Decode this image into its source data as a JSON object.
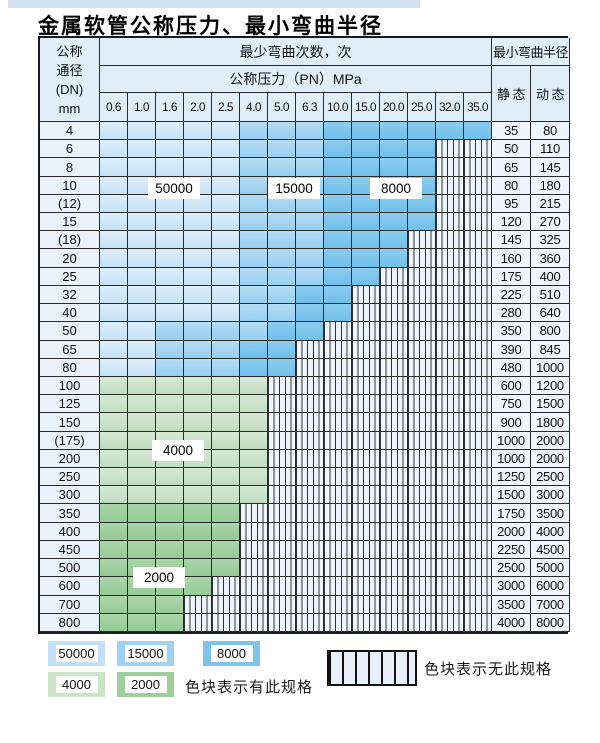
{
  "title": "金属软管公称压力、最小弯曲半径",
  "colors": {
    "blue_light": "#cfe7f8",
    "blue_mid": "#a6d6f2",
    "blue_dark": "#7cc4ec",
    "green_light": "#cde5cb",
    "green_mid": "#9ed09d",
    "hatch_bg": "#edf4fb",
    "header_bg": "#e0eefa",
    "label_col_bg": "#e9f2fb",
    "value_col_bg": "#eef5fc"
  },
  "table": {
    "dn_header_lines": [
      "公称",
      "通径",
      "(DN)",
      "mm"
    ],
    "cycles_header": "最少弯曲次数，次",
    "pressure_header": "公称压力（PN）MPa",
    "radius_header": "最小弯曲半径",
    "static_header": "静 态",
    "dynamic_header": "动 态",
    "pressure_columns": [
      "0.6",
      "1.0",
      "1.6",
      "2.0",
      "2.5",
      "4.0",
      "5.0",
      "6.3",
      "10.0",
      "15.0",
      "20.0",
      "25.0",
      "32.0",
      "35.0"
    ],
    "rows": [
      {
        "dn": "4",
        "zones": {
          "B1": 5,
          "B2": 3,
          "B3": 6
        },
        "static": "35",
        "dynamic": "80"
      },
      {
        "dn": "6",
        "zones": {
          "B1": 5,
          "B2": 3,
          "B3": 4
        },
        "static": "50",
        "dynamic": "110"
      },
      {
        "dn": "8",
        "zones": {
          "B1": 5,
          "B2": 3,
          "B3": 4
        },
        "static": "65",
        "dynamic": "145"
      },
      {
        "dn": "10",
        "zones": {
          "B1": 5,
          "B2": 3,
          "B3": 4
        },
        "static": "80",
        "dynamic": "180"
      },
      {
        "dn": "(12)",
        "zones": {
          "B1": 5,
          "B2": 3,
          "B3": 4
        },
        "static": "95",
        "dynamic": "215"
      },
      {
        "dn": "15",
        "zones": {
          "B1": 5,
          "B2": 3,
          "B3": 4
        },
        "static": "120",
        "dynamic": "270"
      },
      {
        "dn": "(18)",
        "zones": {
          "B1": 5,
          "B2": 3,
          "B3": 3
        },
        "static": "145",
        "dynamic": "325"
      },
      {
        "dn": "20",
        "zones": {
          "B1": 5,
          "B2": 3,
          "B3": 3
        },
        "static": "160",
        "dynamic": "360"
      },
      {
        "dn": "25",
        "zones": {
          "B1": 5,
          "B2": 3,
          "B3": 2
        },
        "static": "175",
        "dynamic": "400"
      },
      {
        "dn": "32",
        "zones": {
          "B1": 5,
          "B2": 2,
          "B3": 2
        },
        "static": "225",
        "dynamic": "510"
      },
      {
        "dn": "40",
        "zones": {
          "B1": 5,
          "B2": 2,
          "B3": 2
        },
        "static": "280",
        "dynamic": "640"
      },
      {
        "dn": "50",
        "zones": {
          "B1": 2,
          "B2": 4,
          "B3": 2
        },
        "static": "350",
        "dynamic": "800"
      },
      {
        "dn": "65",
        "zones": {
          "B1": 2,
          "B2": 3,
          "B3": 2
        },
        "static": "390",
        "dynamic": "845"
      },
      {
        "dn": "80",
        "zones": {
          "B1": 2,
          "B2": 3,
          "B3": 2
        },
        "static": "480",
        "dynamic": "1000"
      },
      {
        "dn": "100",
        "zones": {
          "G1": 6
        },
        "static": "600",
        "dynamic": "1200"
      },
      {
        "dn": "125",
        "zones": {
          "G1": 6
        },
        "static": "750",
        "dynamic": "1500"
      },
      {
        "dn": "150",
        "zones": {
          "G1": 6
        },
        "static": "900",
        "dynamic": "1800"
      },
      {
        "dn": "(175)",
        "zones": {
          "G1": 6
        },
        "static": "1000",
        "dynamic": "2000"
      },
      {
        "dn": "200",
        "zones": {
          "G1": 6
        },
        "static": "1000",
        "dynamic": "2000"
      },
      {
        "dn": "250",
        "zones": {
          "G1": 6
        },
        "static": "1250",
        "dynamic": "2500"
      },
      {
        "dn": "300",
        "zones": {
          "G1": 6
        },
        "static": "1500",
        "dynamic": "3000"
      },
      {
        "dn": "350",
        "zones": {
          "G2": 5
        },
        "static": "1750",
        "dynamic": "3500"
      },
      {
        "dn": "400",
        "zones": {
          "G2": 5
        },
        "static": "2000",
        "dynamic": "4000"
      },
      {
        "dn": "450",
        "zones": {
          "G2": 5
        },
        "static": "2250",
        "dynamic": "4500"
      },
      {
        "dn": "500",
        "zones": {
          "G2": 5
        },
        "static": "2500",
        "dynamic": "5000"
      },
      {
        "dn": "600",
        "zones": {
          "G2": 4
        },
        "static": "3000",
        "dynamic": "6000"
      },
      {
        "dn": "700",
        "zones": {
          "G2": 3
        },
        "static": "3500",
        "dynamic": "7000"
      },
      {
        "dn": "800",
        "zones": {
          "G2": 3
        },
        "static": "4000",
        "dynamic": "8000"
      }
    ]
  },
  "region_labels": [
    {
      "id": "label-50000",
      "value": "50000"
    },
    {
      "id": "label-15000",
      "value": "15000"
    },
    {
      "id": "label-8000",
      "value": "8000"
    },
    {
      "id": "label-4000",
      "value": "4000"
    },
    {
      "id": "label-2000",
      "value": "2000"
    }
  ],
  "legend": {
    "items": [
      {
        "value": "50000",
        "type": "B1"
      },
      {
        "value": "15000",
        "type": "B2"
      },
      {
        "value": "8000",
        "type": "B3"
      },
      {
        "value": "4000",
        "type": "G1"
      },
      {
        "value": "2000",
        "type": "G2"
      }
    ],
    "has_spec_text": "色块表示有此规格",
    "no_spec_text": "色块表示无此规格"
  }
}
